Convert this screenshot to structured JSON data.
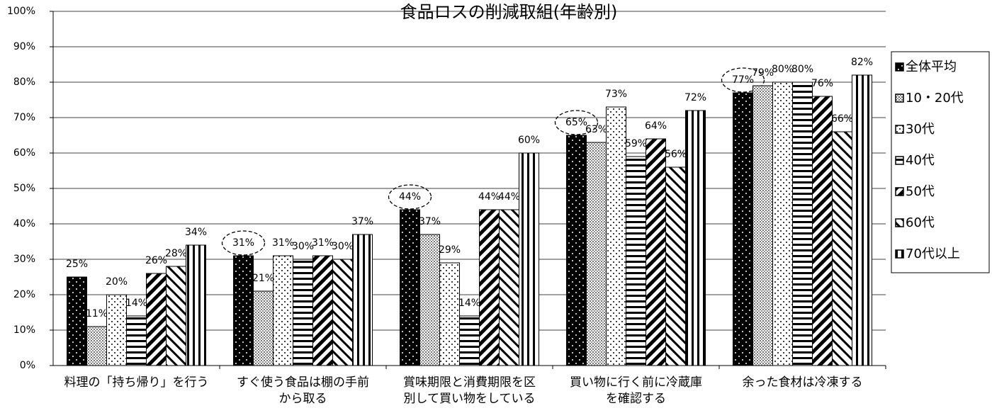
{
  "chart_data": {
    "type": "bar",
    "title": "食品ロスの削減取組(年齢別)",
    "categories": [
      "料理の「持ち帰り」を行う",
      "すぐ使う食品は棚の手前から取る",
      "賞味期限と消費期限を区別して買い物をしている",
      "買い物に行く前に冷蔵庫を確認する",
      "余った食材は冷凍する"
    ],
    "series": [
      {
        "name": "全体平均",
        "color": "#000000",
        "pattern": "dots-dark",
        "values": [
          25,
          31,
          44,
          65,
          77
        ],
        "value_labels": [
          "25%",
          "31%",
          "44%",
          "65%",
          "77%"
        ]
      },
      {
        "name": "10・20代",
        "color": "#bbbbbb",
        "pattern": "dots-grey",
        "values": [
          11,
          21,
          37,
          63,
          79
        ],
        "value_labels": [
          "11%",
          "21%",
          "37%",
          "63%",
          "79%"
        ]
      },
      {
        "name": "30代",
        "color": "#ffffff",
        "pattern": "dots-light",
        "values": [
          20,
          31,
          29,
          73,
          80
        ],
        "value_labels": [
          "20%",
          "31%",
          "29%",
          "73%",
          "80%"
        ]
      },
      {
        "name": "40代",
        "color": "#ffffff",
        "pattern": "horizontal",
        "values": [
          14,
          30,
          14,
          59,
          80
        ],
        "value_labels": [
          "14%",
          "30%",
          "14%",
          "59%",
          "80%"
        ]
      },
      {
        "name": "50代",
        "color": "#ffffff",
        "pattern": "diag-down",
        "values": [
          26,
          31,
          44,
          64,
          76
        ],
        "value_labels": [
          "26%",
          "31%",
          "44%",
          "64%",
          "76%"
        ]
      },
      {
        "name": "60代",
        "color": "#ffffff",
        "pattern": "diag-up",
        "values": [
          28,
          30,
          44,
          56,
          66
        ],
        "value_labels": [
          "28%",
          "30%",
          "44%",
          "56%",
          "66%"
        ]
      },
      {
        "name": "70代以上",
        "color": "#ffffff",
        "pattern": "vertical",
        "values": [
          34,
          37,
          60,
          72,
          82
        ],
        "value_labels": [
          "34%",
          "37%",
          "60%",
          "72%",
          "82%"
        ]
      }
    ],
    "ylim": [
      0,
      100
    ],
    "yticks": [
      {
        "value": 0,
        "label": "0%"
      },
      {
        "value": 10,
        "label": "10%"
      },
      {
        "value": 20,
        "label": "20%"
      },
      {
        "value": 30,
        "label": "30%"
      },
      {
        "value": 40,
        "label": "40%"
      },
      {
        "value": 50,
        "label": "50%"
      },
      {
        "value": 60,
        "label": "60%"
      },
      {
        "value": 70,
        "label": "70%"
      },
      {
        "value": 80,
        "label": "80%"
      },
      {
        "value": 90,
        "label": "90%"
      },
      {
        "value": 100,
        "label": "100%"
      }
    ],
    "grid": true,
    "legend": "right"
  }
}
